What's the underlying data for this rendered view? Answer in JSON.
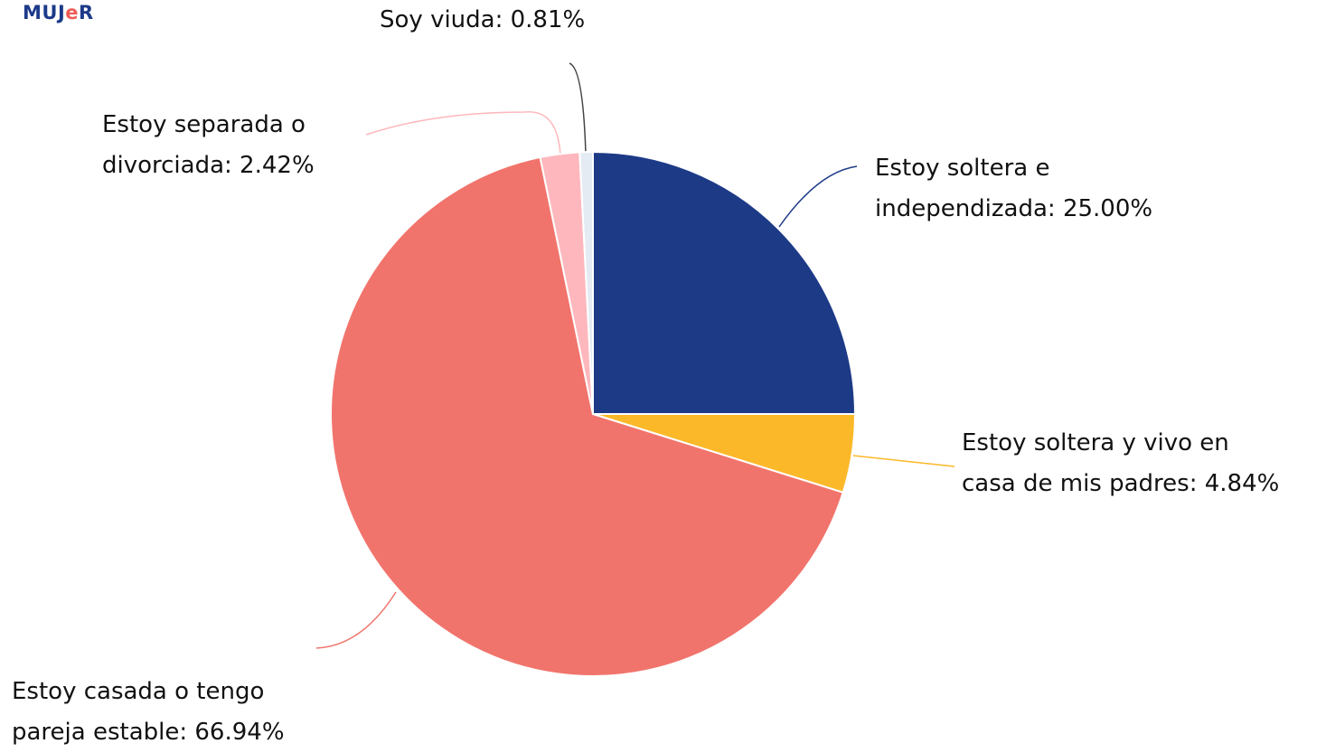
{
  "logo": {
    "part1": "MUJ",
    "part2": "e",
    "part3": "R",
    "colors": {
      "primary": "#1d3a8a",
      "accent": "#ef5c55"
    }
  },
  "chart_data": {
    "type": "pie",
    "start_angle_deg": 0,
    "direction": "clockwise",
    "slices": [
      {
        "label_lines": [
          "Estoy soltera e",
          "independizada: 25.00%"
        ],
        "value": 25.0,
        "color": "#1d3a87",
        "leader_color": "#1d3a87"
      },
      {
        "label_lines": [
          "Estoy soltera y vivo en",
          "casa de mis padres: 4.84%"
        ],
        "value": 4.84,
        "color": "#fbb829",
        "leader_color": "#fbb829"
      },
      {
        "label_lines": [
          "Estoy casada o tengo",
          "pareja estable: 66.94%"
        ],
        "value": 66.94,
        "color": "#f1746c",
        "leader_color": "#f1746c"
      },
      {
        "label_lines": [
          "Estoy separada o",
          "divorciada: 2.42%"
        ],
        "value": 2.42,
        "color": "#feb8bd",
        "leader_color": "#feb8bd"
      },
      {
        "label_lines": [
          "Soy viuda: 0.81%"
        ],
        "value": 0.81,
        "color": "#e5ebf3",
        "leader_color": "#444444"
      }
    ]
  }
}
